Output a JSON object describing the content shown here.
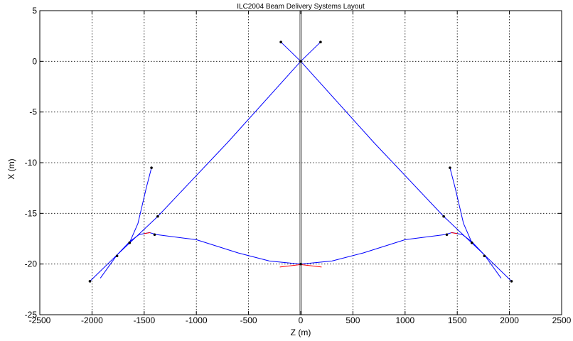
{
  "chart_data": {
    "type": "line",
    "title": "ILC2004 Beam Delivery Systems Layout",
    "xlabel": "Z (m)",
    "ylabel": "X (m)",
    "xlim": [
      -2500,
      2500
    ],
    "ylim": [
      -25,
      5
    ],
    "xticks": [
      -2500,
      -2000,
      -1500,
      -1000,
      -500,
      0,
      500,
      1000,
      1500,
      2000,
      2500
    ],
    "yticks": [
      5,
      0,
      -5,
      -10,
      -15,
      -20,
      -25
    ],
    "grid": true,
    "line_color": "#0000ff",
    "accent_color": "#ff0000",
    "series": [
      {
        "values": [
          [
            -1920,
            -21.4
          ],
          [
            -1760,
            -19.1
          ],
          [
            -1640,
            -17.8
          ],
          [
            -1550,
            -17.1
          ],
          [
            -1450,
            -16.9
          ],
          [
            -1380,
            -17.1
          ],
          [
            -1000,
            -17.6
          ],
          [
            -600,
            -18.9
          ],
          [
            -300,
            -19.7
          ],
          [
            0,
            -20.0
          ]
        ]
      },
      {
        "values": [
          [
            1920,
            -21.4
          ],
          [
            1760,
            -19.1
          ],
          [
            1640,
            -17.8
          ],
          [
            1550,
            -17.1
          ],
          [
            1450,
            -16.9
          ],
          [
            1380,
            -17.1
          ],
          [
            1000,
            -17.6
          ],
          [
            600,
            -18.9
          ],
          [
            300,
            -19.7
          ],
          [
            0,
            -20.0
          ]
        ]
      },
      {
        "values": [
          [
            -2020,
            -21.7
          ],
          [
            -1760,
            -19.1
          ],
          [
            -1370,
            -15.3
          ],
          [
            -700,
            -8.0
          ],
          [
            0,
            0.0
          ],
          [
            190,
            1.9
          ]
        ]
      },
      {
        "values": [
          [
            2020,
            -21.7
          ],
          [
            1760,
            -19.1
          ],
          [
            1370,
            -15.3
          ],
          [
            700,
            -8.0
          ],
          [
            0,
            0.0
          ],
          [
            -190,
            1.9
          ]
        ]
      },
      {
        "values": [
          [
            -1760,
            -19.1
          ],
          [
            -1640,
            -17.9
          ],
          [
            -1560,
            -16.0
          ],
          [
            -1480,
            -12.5
          ],
          [
            -1430,
            -10.5
          ]
        ]
      },
      {
        "values": [
          [
            1760,
            -19.1
          ],
          [
            1640,
            -17.9
          ],
          [
            1560,
            -16.0
          ],
          [
            1480,
            -12.5
          ],
          [
            1430,
            -10.5
          ]
        ]
      }
    ],
    "red_segments": [
      [
        [
          -1500,
          -17.0
        ],
        [
          -1440,
          -16.9
        ]
      ],
      [
        [
          1440,
          -16.9
        ],
        [
          1500,
          -17.0
        ]
      ],
      [
        [
          -200,
          -20.3
        ],
        [
          0,
          -20.05
        ],
        [
          200,
          -20.3
        ]
      ]
    ],
    "markers": [
      [
        -2020,
        -21.7
      ],
      [
        -1760,
        -19.2
      ],
      [
        -1640,
        -17.9
      ],
      [
        -1430,
        -10.5
      ],
      [
        -1370,
        -15.3
      ],
      [
        -1400,
        -17.1
      ],
      [
        -190,
        1.9
      ],
      [
        190,
        1.9
      ],
      [
        0,
        0.0
      ],
      [
        0,
        -20.0
      ],
      [
        1370,
        -15.3
      ],
      [
        1430,
        -10.5
      ],
      [
        1400,
        -17.1
      ],
      [
        1640,
        -17.9
      ],
      [
        1760,
        -19.2
      ],
      [
        2020,
        -21.7
      ]
    ],
    "vertical_band": {
      "x": [
        -8,
        8
      ]
    }
  }
}
